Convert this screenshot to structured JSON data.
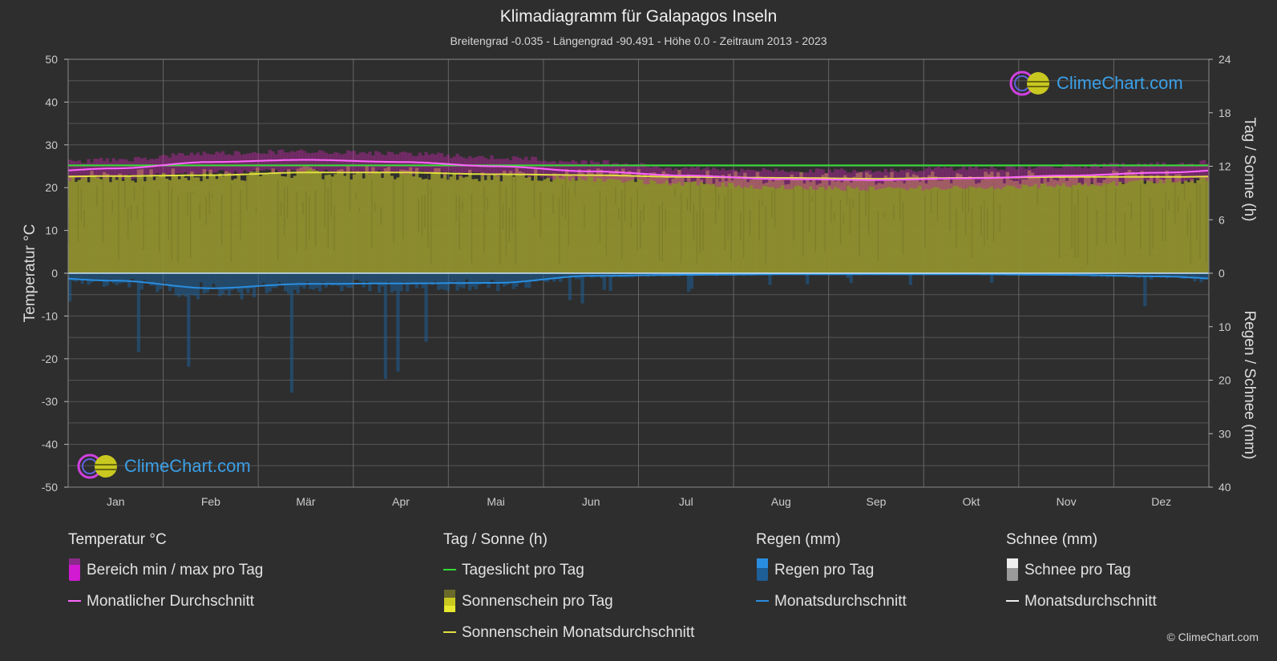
{
  "header": {
    "title": "Klimadiagramm für Galapagos Inseln",
    "subtitle": "Breitengrad -0.035 - Längengrad -90.491 - Höhe 0.0 - Zeitraum 2013 - 2023"
  },
  "chart_data": {
    "type": "area",
    "x_categories": [
      "Jan",
      "Feb",
      "Mär",
      "Apr",
      "Mai",
      "Jun",
      "Jul",
      "Aug",
      "Sep",
      "Okt",
      "Nov",
      "Dez"
    ],
    "axes": {
      "left": {
        "label": "Temperatur °C",
        "range": [
          -50,
          50
        ],
        "ticks": [
          50,
          40,
          30,
          20,
          10,
          0,
          -10,
          -20,
          -30,
          -40,
          -50
        ]
      },
      "right_top": {
        "label": "Tag / Sonne (h)",
        "range": [
          0,
          24
        ],
        "ticks": [
          24,
          18,
          12,
          6,
          0
        ]
      },
      "right_bottom": {
        "label": "Regen / Schnee (mm)",
        "range": [
          0,
          40
        ],
        "ticks": [
          10,
          20,
          30,
          40
        ]
      }
    },
    "grid": true,
    "series": [
      {
        "name": "Tageslicht pro Tag",
        "unit": "h",
        "color": "#33dd33",
        "values": [
          12.1,
          12.1,
          12.1,
          12.1,
          12.1,
          12.1,
          12.1,
          12.1,
          12.1,
          12.1,
          12.1,
          12.1
        ]
      },
      {
        "name": "Sonnenschein Monatsdurchschnitt",
        "unit": "h",
        "color": "#e0e040",
        "values": [
          10.9,
          11.0,
          11.3,
          11.3,
          11.1,
          11.0,
          10.8,
          10.7,
          10.6,
          10.7,
          10.8,
          10.8
        ]
      },
      {
        "name": "Monatlicher Durchschnitt",
        "unit": "°C",
        "color": "#ff66ff",
        "values": [
          24.5,
          26.0,
          26.5,
          26.0,
          25.0,
          23.8,
          22.8,
          22.0,
          21.8,
          22.2,
          22.8,
          23.5
        ]
      },
      {
        "name": "Bereich min / max pro Tag",
        "unit": "°C",
        "color": "#cc22cc",
        "min": [
          22.5,
          23.5,
          24.0,
          23.5,
          23.0,
          22.0,
          21.0,
          20.0,
          19.8,
          20.0,
          20.5,
          21.5
        ],
        "max": [
          26.5,
          28.0,
          28.5,
          28.0,
          27.0,
          26.0,
          24.5,
          24.0,
          24.0,
          24.5,
          25.0,
          25.5
        ]
      },
      {
        "name": "Monatsdurchschnitt",
        "kind": "rain",
        "unit": "mm",
        "color": "#2a8ee0",
        "values": [
          1.4,
          2.8,
          2.0,
          1.9,
          1.8,
          0.5,
          0.3,
          0.2,
          0.2,
          0.2,
          0.3,
          0.6
        ]
      }
    ]
  },
  "legend": {
    "groups": [
      {
        "heading": "Temperatur °C",
        "items": [
          "Bereich min / max pro Tag",
          "Monatlicher Durchschnitt"
        ]
      },
      {
        "heading": "Tag / Sonne (h)",
        "items": [
          "Tageslicht pro Tag",
          "Sonnenschein pro Tag",
          "Sonnenschein Monatsdurchschnitt"
        ]
      },
      {
        "heading": "Regen (mm)",
        "items": [
          "Regen pro Tag",
          "Monatsdurchschnitt"
        ]
      },
      {
        "heading": "Schnee (mm)",
        "items": [
          "Schnee pro Tag",
          "Monatsdurchschnitt"
        ]
      }
    ]
  },
  "watermark": {
    "text": "ClimeChart.com"
  },
  "footer": {
    "copyright": "© ClimeChart.com"
  },
  "colors": {
    "background": "#2e2e2e",
    "sunshine_fill": "#8f8f2e",
    "temp_range": "#b8289f",
    "rain_bar": "#1d5f96",
    "daylight": "#33dd33",
    "sun_line": "#e0e040",
    "temp_line": "#ff66ff",
    "rain_line": "#2a8ee0"
  }
}
